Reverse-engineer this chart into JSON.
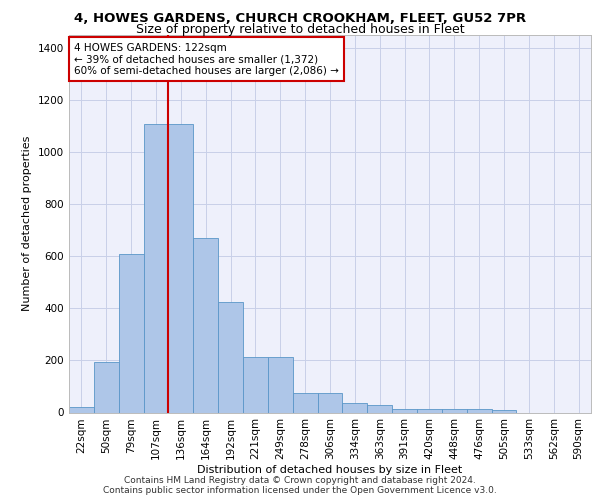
{
  "title_line1": "4, HOWES GARDENS, CHURCH CROOKHAM, FLEET, GU52 7PR",
  "title_line2": "Size of property relative to detached houses in Fleet",
  "xlabel": "Distribution of detached houses by size in Fleet",
  "ylabel": "Number of detached properties",
  "bar_labels": [
    "22sqm",
    "50sqm",
    "79sqm",
    "107sqm",
    "136sqm",
    "164sqm",
    "192sqm",
    "221sqm",
    "249sqm",
    "278sqm",
    "306sqm",
    "334sqm",
    "363sqm",
    "391sqm",
    "420sqm",
    "448sqm",
    "476sqm",
    "505sqm",
    "533sqm",
    "562sqm",
    "590sqm"
  ],
  "bar_values": [
    20,
    195,
    610,
    1110,
    1110,
    670,
    425,
    215,
    215,
    75,
    75,
    35,
    30,
    15,
    15,
    15,
    12,
    10,
    0,
    0,
    0
  ],
  "bar_color": "#aec6e8",
  "bar_edgecolor": "#5a96c8",
  "annotation_text": "4 HOWES GARDENS: 122sqm\n← 39% of detached houses are smaller (1,372)\n60% of semi-detached houses are larger (2,086) →",
  "vline_x": 3.5,
  "vline_color": "#cc0000",
  "ylim": [
    0,
    1450
  ],
  "yticks": [
    0,
    200,
    400,
    600,
    800,
    1000,
    1200,
    1400
  ],
  "grid_color": "#c8cfe8",
  "bg_color": "#eef0fb",
  "footer_line1": "Contains HM Land Registry data © Crown copyright and database right 2024.",
  "footer_line2": "Contains public sector information licensed under the Open Government Licence v3.0.",
  "annotation_box_edgecolor": "#cc0000",
  "annotation_box_facecolor": "#ffffff",
  "title_fontsize": 9.5,
  "subtitle_fontsize": 9,
  "ylabel_fontsize": 8,
  "xlabel_fontsize": 8,
  "tick_fontsize": 7.5,
  "footer_fontsize": 6.5
}
